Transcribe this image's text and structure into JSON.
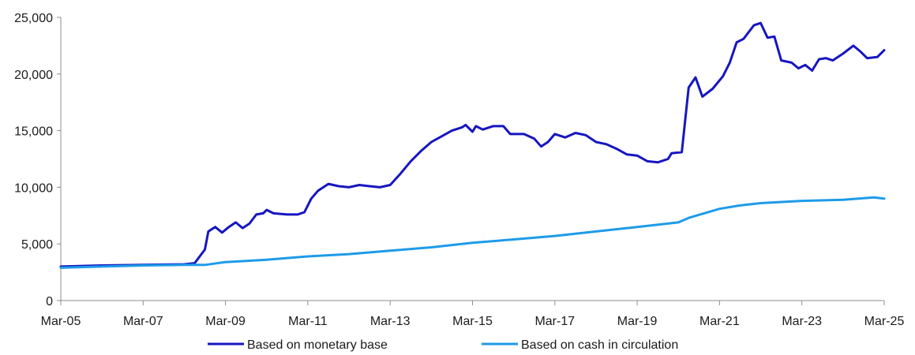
{
  "chart_data": {
    "type": "line",
    "title": "",
    "xlabel": "",
    "ylabel": "",
    "ylim": [
      0,
      25000
    ],
    "y_ticks": [
      "0",
      "5,000",
      "10,000",
      "15,000",
      "20,000",
      "25,000"
    ],
    "x_ticks": [
      "Mar-05",
      "Mar-07",
      "Mar-09",
      "Mar-11",
      "Mar-13",
      "Mar-15",
      "Mar-17",
      "Mar-19",
      "Mar-21",
      "Mar-23",
      "Mar-25"
    ],
    "x_range": [
      "2005-03",
      "2025-03"
    ],
    "grid": "none",
    "legend_position": "bottom",
    "series": [
      {
        "name": "Based on monetary base",
        "color": "#1616C0",
        "points": [
          [
            "2005-03",
            3000
          ],
          [
            "2006-03",
            3100
          ],
          [
            "2007-03",
            3150
          ],
          [
            "2008-03",
            3200
          ],
          [
            "2008-06",
            3300
          ],
          [
            "2008-09",
            4500
          ],
          [
            "2008-10",
            6100
          ],
          [
            "2008-12",
            6500
          ],
          [
            "2009-02",
            6000
          ],
          [
            "2009-04",
            6500
          ],
          [
            "2009-06",
            6900
          ],
          [
            "2009-08",
            6400
          ],
          [
            "2009-10",
            6800
          ],
          [
            "2009-12",
            7600
          ],
          [
            "2010-02",
            7700
          ],
          [
            "2010-03",
            8000
          ],
          [
            "2010-05",
            7700
          ],
          [
            "2010-09",
            7600
          ],
          [
            "2010-12",
            7600
          ],
          [
            "2011-02",
            7800
          ],
          [
            "2011-04",
            9000
          ],
          [
            "2011-06",
            9700
          ],
          [
            "2011-09",
            10300
          ],
          [
            "2011-12",
            10100
          ],
          [
            "2012-03",
            10000
          ],
          [
            "2012-06",
            10200
          ],
          [
            "2012-09",
            10100
          ],
          [
            "2012-12",
            10000
          ],
          [
            "2013-03",
            10200
          ],
          [
            "2013-06",
            11200
          ],
          [
            "2013-09",
            12300
          ],
          [
            "2013-12",
            13200
          ],
          [
            "2014-03",
            14000
          ],
          [
            "2014-06",
            14500
          ],
          [
            "2014-09",
            15000
          ],
          [
            "2014-12",
            15300
          ],
          [
            "2015-01",
            15500
          ],
          [
            "2015-03",
            14900
          ],
          [
            "2015-04",
            15400
          ],
          [
            "2015-06",
            15100
          ],
          [
            "2015-09",
            15400
          ],
          [
            "2015-12",
            15400
          ],
          [
            "2016-02",
            14700
          ],
          [
            "2016-06",
            14700
          ],
          [
            "2016-09",
            14300
          ],
          [
            "2016-11",
            13600
          ],
          [
            "2017-01",
            14000
          ],
          [
            "2017-03",
            14700
          ],
          [
            "2017-06",
            14400
          ],
          [
            "2017-09",
            14800
          ],
          [
            "2017-12",
            14600
          ],
          [
            "2018-03",
            14000
          ],
          [
            "2018-06",
            13800
          ],
          [
            "2018-09",
            13400
          ],
          [
            "2018-12",
            12900
          ],
          [
            "2019-03",
            12800
          ],
          [
            "2019-06",
            12300
          ],
          [
            "2019-09",
            12200
          ],
          [
            "2019-12",
            12500
          ],
          [
            "2020-01",
            13000
          ],
          [
            "2020-04",
            13100
          ],
          [
            "2020-06",
            18800
          ],
          [
            "2020-08",
            19700
          ],
          [
            "2020-10",
            18000
          ],
          [
            "2021-01",
            18700
          ],
          [
            "2021-04",
            19800
          ],
          [
            "2021-06",
            21000
          ],
          [
            "2021-08",
            22800
          ],
          [
            "2021-10",
            23100
          ],
          [
            "2022-01",
            24300
          ],
          [
            "2022-03",
            24500
          ],
          [
            "2022-05",
            23200
          ],
          [
            "2022-07",
            23300
          ],
          [
            "2022-09",
            21200
          ],
          [
            "2022-12",
            21000
          ],
          [
            "2023-02",
            20500
          ],
          [
            "2023-04",
            20800
          ],
          [
            "2023-06",
            20300
          ],
          [
            "2023-08",
            21300
          ],
          [
            "2023-10",
            21400
          ],
          [
            "2023-12",
            21200
          ],
          [
            "2024-03",
            21800
          ],
          [
            "2024-06",
            22500
          ],
          [
            "2024-08",
            22000
          ],
          [
            "2024-10",
            21400
          ],
          [
            "2025-01",
            21500
          ],
          [
            "2025-03",
            22100
          ]
        ]
      },
      {
        "name": "Based on cash in circulation",
        "color": "#1E9BE8",
        "points": [
          [
            "2005-03",
            2900
          ],
          [
            "2006-03",
            3000
          ],
          [
            "2007-03",
            3100
          ],
          [
            "2008-03",
            3150
          ],
          [
            "2008-09",
            3150
          ],
          [
            "2009-03",
            3400
          ],
          [
            "2010-03",
            3600
          ],
          [
            "2011-03",
            3900
          ],
          [
            "2012-03",
            4100
          ],
          [
            "2013-03",
            4400
          ],
          [
            "2014-03",
            4700
          ],
          [
            "2015-03",
            5100
          ],
          [
            "2016-03",
            5400
          ],
          [
            "2017-03",
            5700
          ],
          [
            "2018-03",
            6100
          ],
          [
            "2019-03",
            6500
          ],
          [
            "2020-03",
            6900
          ],
          [
            "2020-06",
            7300
          ],
          [
            "2021-03",
            8100
          ],
          [
            "2021-09",
            8400
          ],
          [
            "2022-03",
            8600
          ],
          [
            "2023-03",
            8800
          ],
          [
            "2024-03",
            8900
          ],
          [
            "2024-12",
            9100
          ],
          [
            "2025-03",
            9000
          ]
        ]
      }
    ]
  }
}
